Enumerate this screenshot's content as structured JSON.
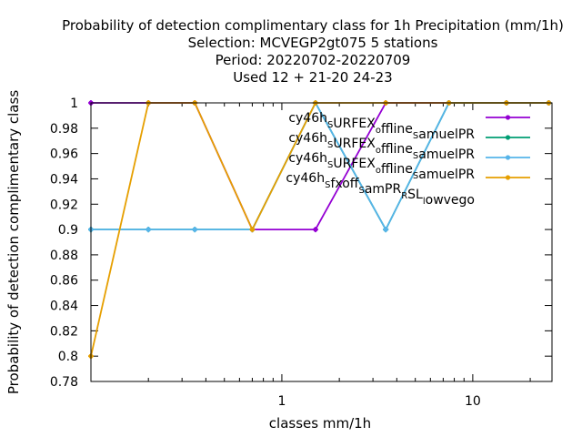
{
  "chart_data": {
    "type": "line",
    "title_lines": [
      "Probability of detection complimentary class  for 1h Precipitation (mm/1h)",
      "Selection: MCVEGP2gt075      5 stations",
      "Period: 20220702-20220709",
      "Used  12 + 21-20 24-23"
    ],
    "xlabel": "classes mm/1h",
    "ylabel": "Probability of detection complimentary class",
    "x_scale": "log",
    "xlim": [
      0.1,
      26
    ],
    "ylim": [
      0.78,
      1.0
    ],
    "x_tick_labels": [
      {
        "value": 1,
        "label": "1"
      },
      {
        "value": 10,
        "label": "10"
      }
    ],
    "y_tick_labels": [
      "0.78",
      "0.8",
      "0.82",
      "0.84",
      "0.86",
      "0.88",
      "0.9",
      "0.92",
      "0.94",
      "0.96",
      "0.98",
      "1"
    ],
    "y_ticks": [
      0.78,
      0.8,
      0.82,
      0.84,
      0.86,
      0.88,
      0.9,
      0.92,
      0.94,
      0.96,
      0.98,
      1.0
    ],
    "grid": false,
    "legend_position": "top-right",
    "series": [
      {
        "legend_parts": [
          {
            "t": "cy46h",
            "sub": false
          },
          {
            "t": "S",
            "sub": true
          },
          {
            "t": "URFEX",
            "sub": false
          },
          {
            "t": "o",
            "sub": true
          },
          {
            "t": "ffline",
            "sub": false
          },
          {
            "t": "S",
            "sub": true
          },
          {
            "t": "amuelPR",
            "sub": false
          }
        ],
        "color": "#9400d3",
        "x": [
          0.1,
          0.2,
          0.35,
          0.7,
          1.5,
          3.5,
          7.5,
          15,
          25
        ],
        "values": [
          1.0,
          1.0,
          1.0,
          0.9,
          0.9,
          1.0,
          1.0,
          1.0,
          1.0
        ]
      },
      {
        "legend_parts": [
          {
            "t": "cy46h",
            "sub": false
          },
          {
            "t": "S",
            "sub": true
          },
          {
            "t": "URFEX",
            "sub": false
          },
          {
            "t": "o",
            "sub": true
          },
          {
            "t": "ffline",
            "sub": false
          },
          {
            "t": "S",
            "sub": true
          },
          {
            "t": "amuelPR",
            "sub": false
          }
        ],
        "color": "#009e73",
        "x": [
          0.1,
          0.2,
          0.35,
          0.7,
          1.5,
          3.5,
          7.5,
          15,
          25
        ],
        "values": [
          0.9,
          0.9,
          0.9,
          0.9,
          1.0,
          0.9,
          1.0,
          1.0,
          1.0
        ]
      },
      {
        "legend_parts": [
          {
            "t": "cy46h",
            "sub": false
          },
          {
            "t": "S",
            "sub": true
          },
          {
            "t": "URFEX",
            "sub": false
          },
          {
            "t": "o",
            "sub": true
          },
          {
            "t": "ffline",
            "sub": false
          },
          {
            "t": "S",
            "sub": true
          },
          {
            "t": "amuelPR",
            "sub": false
          }
        ],
        "color": "#56b4e9",
        "x": [
          0.1,
          0.2,
          0.35,
          0.7,
          1.5,
          3.5,
          7.5,
          15,
          25
        ],
        "values": [
          0.9,
          0.9,
          0.9,
          0.9,
          1.0,
          0.9,
          1.0,
          1.0,
          1.0
        ]
      },
      {
        "legend_parts": [
          {
            "t": "cy46h",
            "sub": false
          },
          {
            "t": "S",
            "sub": true
          },
          {
            "t": "fxoff",
            "sub": false
          },
          {
            "t": "S",
            "sub": true
          },
          {
            "t": "amPR",
            "sub": false
          },
          {
            "t": "R",
            "sub": true
          },
          {
            "t": "SL",
            "sub": false
          },
          {
            "t": "l",
            "sub": true
          },
          {
            "t": "owvego",
            "sub": false
          }
        ],
        "color": "#e69f00",
        "x": [
          0.1,
          0.2,
          0.35,
          0.7,
          1.5,
          3.5,
          7.5,
          15,
          25
        ],
        "values": [
          0.8,
          1.0,
          1.0,
          0.9,
          1.0,
          1.0,
          1.0,
          1.0,
          1.0
        ]
      }
    ]
  }
}
